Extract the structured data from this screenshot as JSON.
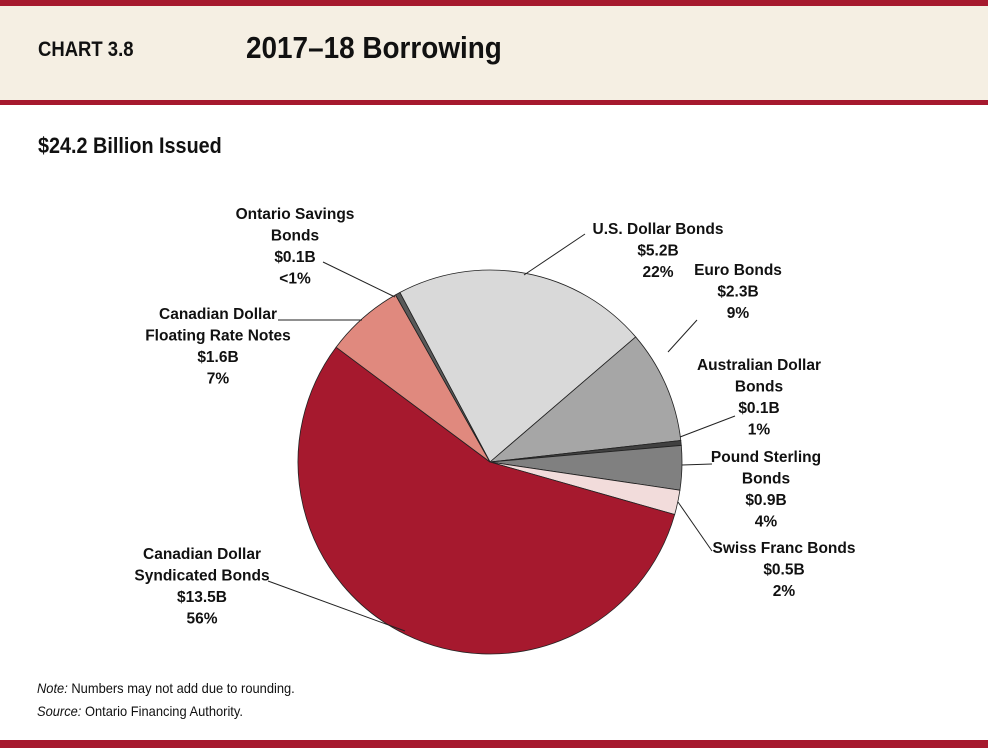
{
  "header": {
    "chart_number": "CHART 3.8",
    "title": "2017–18 Borrowing"
  },
  "colors": {
    "brand_red": "#a6192e",
    "header_bg": "#f5efe3"
  },
  "chart_data": {
    "type": "pie",
    "title": "2017–18 Borrowing",
    "subtitle": "$24.2 Billion Issued",
    "slices": [
      {
        "name": [
          "U.S. Dollar Bonds"
        ],
        "value": 5.2,
        "value_label": "$5.2B",
        "percent_label": "22%",
        "color": "#d9d9d9"
      },
      {
        "name": [
          "Euro Bonds"
        ],
        "value": 2.3,
        "value_label": "$2.3B",
        "percent_label": "9%",
        "color": "#a6a6a6"
      },
      {
        "name": [
          "Australian Dollar",
          "Bonds"
        ],
        "value": 0.1,
        "value_label": "$0.1B",
        "percent_label": "1%",
        "color": "#404040"
      },
      {
        "name": [
          "Pound Sterling",
          "Bonds"
        ],
        "value": 0.9,
        "value_label": "$0.9B",
        "percent_label": "4%",
        "color": "#808080"
      },
      {
        "name": [
          "Swiss Franc Bonds"
        ],
        "value": 0.5,
        "value_label": "$0.5B",
        "percent_label": "2%",
        "color": "#f2dcdb"
      },
      {
        "name": [
          "Canadian Dollar",
          "Syndicated Bonds"
        ],
        "value": 13.5,
        "value_label": "$13.5B",
        "percent_label": "56%",
        "color": "#a6192e"
      },
      {
        "name": [
          "Canadian Dollar",
          "Floating Rate Notes"
        ],
        "value": 1.6,
        "value_label": "$1.6B",
        "percent_label": "7%",
        "color": "#e0897e"
      },
      {
        "name": [
          "Ontario Savings",
          "Bonds"
        ],
        "value": 0.1,
        "value_label": "$0.1B",
        "percent_label": "<1%",
        "color": "#595959"
      }
    ]
  },
  "notes": {
    "note_label": "Note:",
    "note_text": " Numbers may not add due to rounding.",
    "source_label": "Source:",
    "source_text": " Ontario Financing Authority."
  }
}
